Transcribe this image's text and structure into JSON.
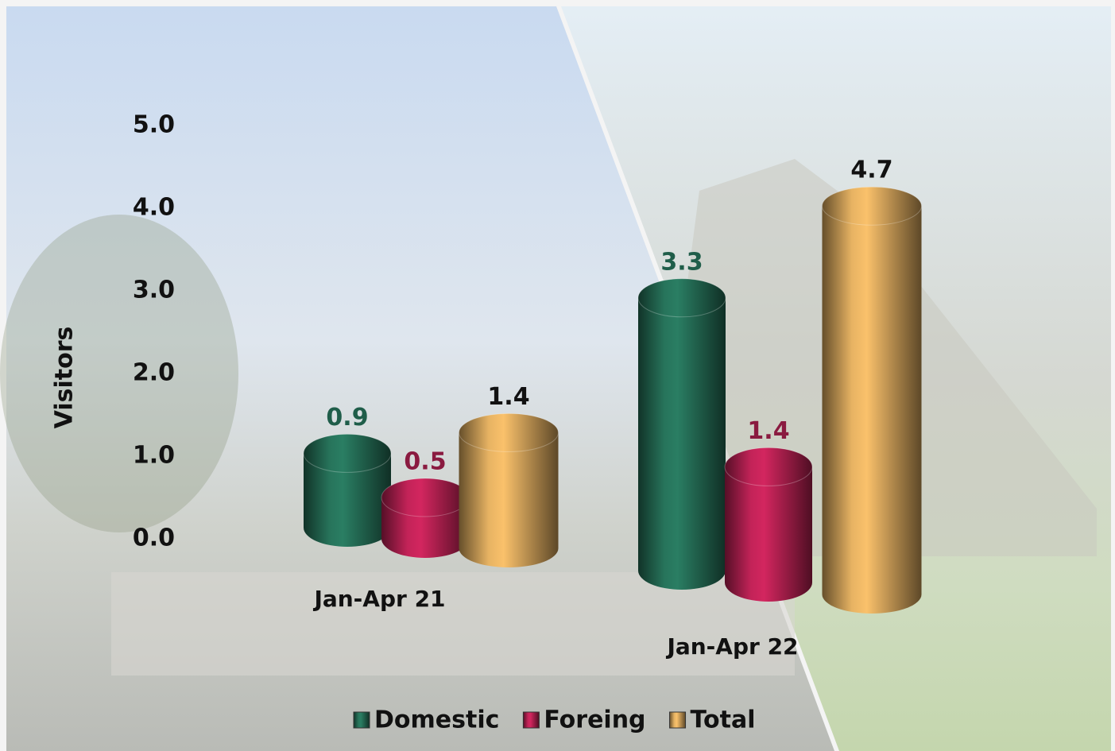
{
  "chart_data": {
    "type": "bar",
    "y_label": "Visitors",
    "categories": [
      "Jan-Apr 21",
      "Jan-Apr 22"
    ],
    "series": [
      {
        "name": "Domestic",
        "color": "#1f5d49",
        "label_color": "#1f5d49",
        "values": [
          0.9,
          3.3
        ]
      },
      {
        "name": "Foreing",
        "color": "#9c1c46",
        "label_color": "#8a1a40",
        "values": [
          0.5,
          1.4
        ]
      },
      {
        "name": "Total",
        "color": "#b98f4f",
        "label_color": "#111111",
        "values": [
          1.4,
          4.7
        ]
      }
    ],
    "ylim": [
      0,
      5
    ],
    "yticks": [
      {
        "value": 0,
        "label": "0.0"
      },
      {
        "value": 1,
        "label": "1.0"
      },
      {
        "value": 2,
        "label": "2.0"
      },
      {
        "value": 3,
        "label": "3.0"
      },
      {
        "value": 4,
        "label": "4.0"
      },
      {
        "value": 5,
        "label": "5.0"
      }
    ],
    "legend": "bottom"
  }
}
